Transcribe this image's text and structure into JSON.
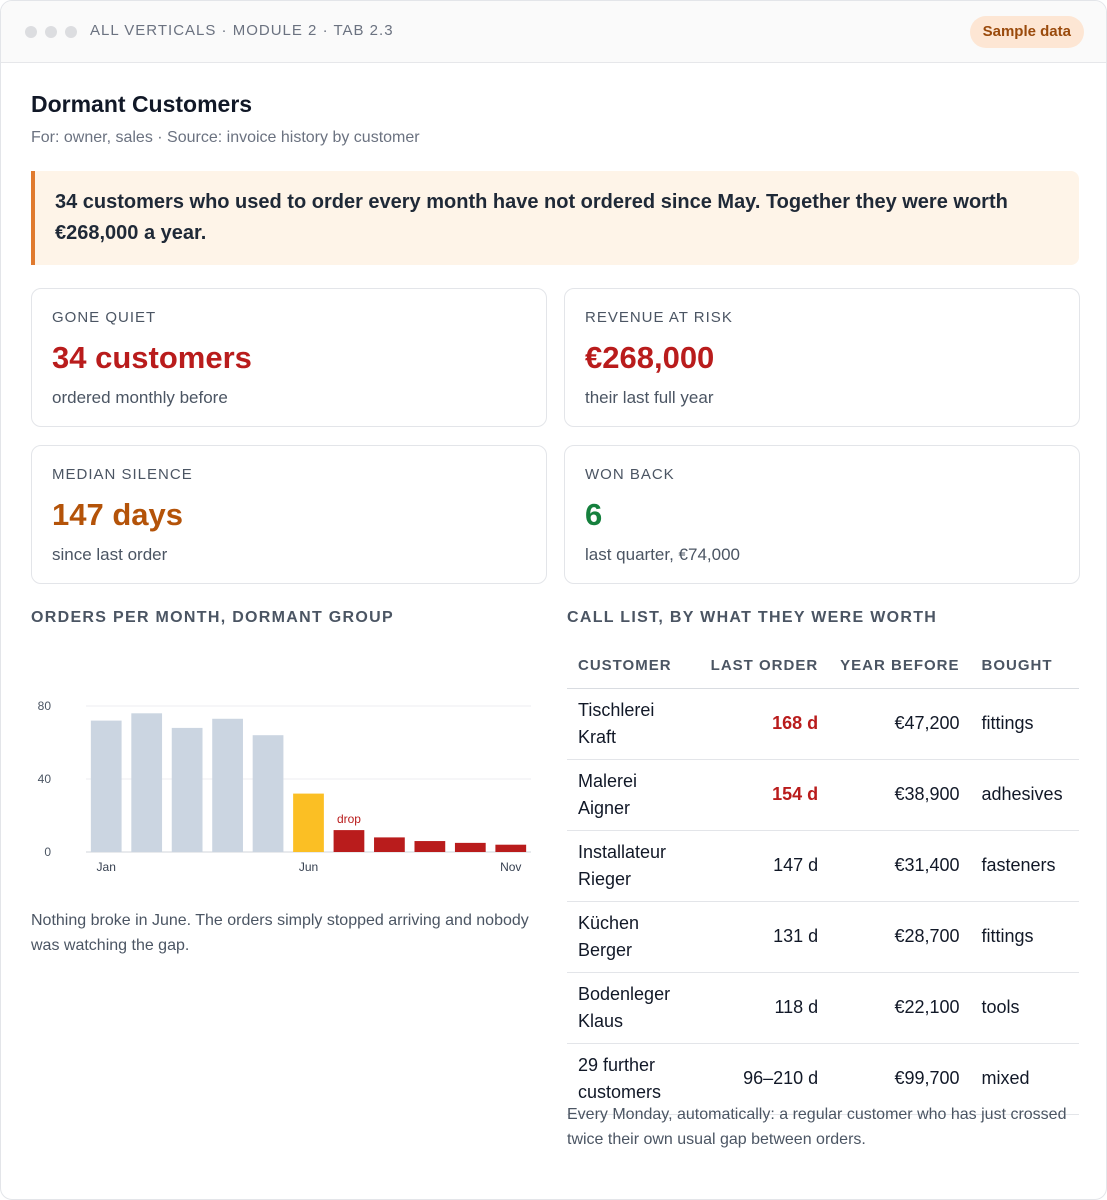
{
  "window": {
    "breadcrumb": "ALL VERTICALS · MODULE 2 · TAB 2.3",
    "badge": "Sample data"
  },
  "header": {
    "title": "Dormant Customers",
    "subtitle": "For: owner, sales · Source: invoice history by customer"
  },
  "callout": "34 customers who used to order every month have not ordered since May. Together they were worth €268,000 a year.",
  "kpis": [
    {
      "label": "GONE QUIET",
      "value": "34 customers",
      "note": "ordered monthly before",
      "color": "#b91c1c"
    },
    {
      "label": "REVENUE AT RISK",
      "value": "€268,000",
      "note": "their last full year",
      "color": "#b91c1c"
    },
    {
      "label": "MEDIAN SILENCE",
      "value": "147 days",
      "note": "since last order",
      "color": "#b45309"
    },
    {
      "label": "WON BACK",
      "value": "6",
      "note": "last quarter, €74,000",
      "color": "#15803d"
    }
  ],
  "chart": {
    "heading": "ORDERS PER MONTH, DORMANT GROUP",
    "caption": "Nothing broke in June. The orders simply stopped arriving and nobody was watching the gap."
  },
  "chart_data": {
    "type": "bar",
    "categories": [
      "Jan",
      "Feb",
      "Mar",
      "Apr",
      "May",
      "Jun",
      "Jul",
      "Aug",
      "Sep",
      "Oct",
      "Nov"
    ],
    "values": [
      72,
      76,
      68,
      73,
      64,
      32,
      12,
      8,
      6,
      5,
      4
    ],
    "x_tick_labels": [
      "Jan",
      "Jun",
      "Nov"
    ],
    "y_ticks": [
      0,
      40,
      80
    ],
    "ylim": [
      0,
      80
    ],
    "grid": true,
    "annotation": {
      "text": "drop",
      "category": "Jul"
    },
    "colors": {
      "normal": "#cbd5e1",
      "transition": "#fbbf24",
      "drop": "#b91c1c",
      "annotation": "#b91c1c"
    },
    "title": "",
    "xlabel": "",
    "ylabel": ""
  },
  "call_list": {
    "heading": "CALL LIST, BY WHAT THEY WERE WORTH",
    "columns": [
      "CUSTOMER",
      "LAST ORDER",
      "YEAR BEFORE",
      "BOUGHT"
    ],
    "rows": [
      {
        "customer": "Tischlerei Kraft",
        "last_order": "168 d",
        "year_before": "€47,200",
        "bought": "fittings",
        "late": true
      },
      {
        "customer": "Malerei Aigner",
        "last_order": "154 d",
        "year_before": "€38,900",
        "bought": "adhesives",
        "late": true
      },
      {
        "customer": "Installateur Rieger",
        "last_order": "147 d",
        "year_before": "€31,400",
        "bought": "fasteners",
        "late": false
      },
      {
        "customer": "Küchen Berger",
        "last_order": "131 d",
        "year_before": "€28,700",
        "bought": "fittings",
        "late": false
      },
      {
        "customer": "Bodenleger Klaus",
        "last_order": "118 d",
        "year_before": "€22,100",
        "bought": "tools",
        "late": false
      },
      {
        "customer": "29 further customers",
        "last_order": "96–210 d",
        "year_before": "€99,700",
        "bought": "mixed",
        "late": false
      }
    ],
    "note": "Every Monday, automatically: a regular customer who has just crossed twice their own usual gap between orders."
  }
}
